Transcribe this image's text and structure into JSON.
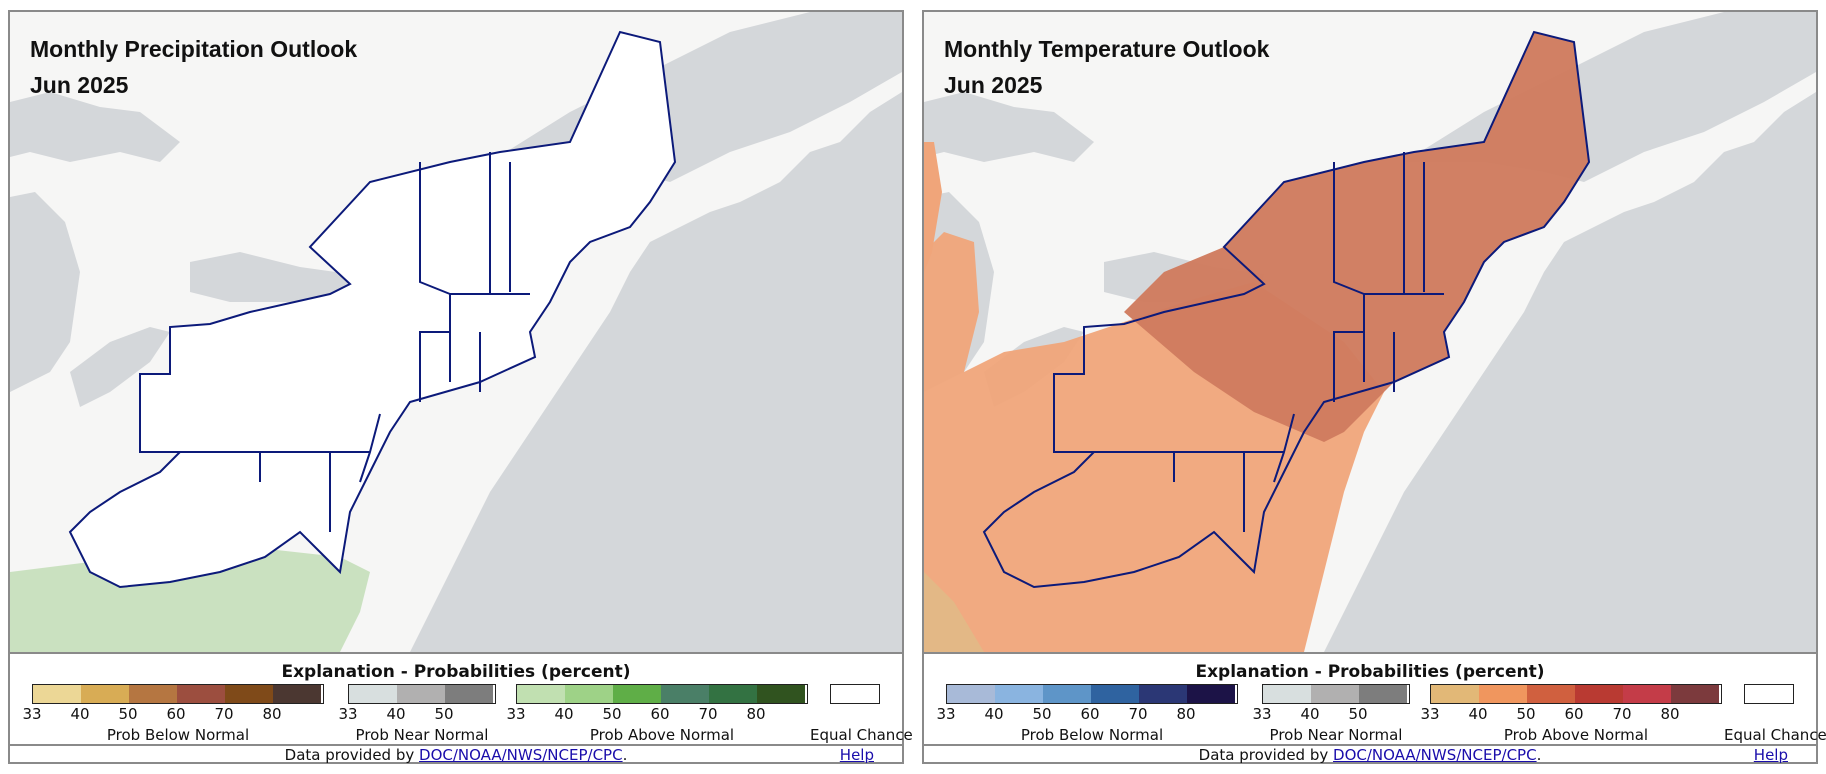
{
  "colors": {
    "water": "#d4d7da",
    "land": "#f6f6f5",
    "state_border": "#0c1a7a",
    "precip_above_fill": "#c5dfba",
    "temp_above_light": "#f0a57a",
    "temp_above_dark": "#d07c5f",
    "temp_near_yellow": "#e3b886"
  },
  "panels": [
    {
      "title": "Monthly Precipitation Outlook",
      "period": "Jun 2025",
      "legend": {
        "title": "Explanation - Probabilities (percent)",
        "groups": [
          {
            "label": "Prob Below Normal",
            "ticks": [
              "33",
              "40",
              "50",
              "60",
              "70",
              "80"
            ],
            "colors": [
              "#ecd796",
              "#d8ac55",
              "#b57641",
              "#9c4e3f",
              "#7f4a19",
              "#4b3731"
            ]
          },
          {
            "label": "Prob Near Normal",
            "ticks": [
              "33",
              "40",
              "50"
            ],
            "colors": [
              "#d8dfdf",
              "#b1b0b0",
              "#7d7d7d"
            ]
          },
          {
            "label": "Prob Above Normal",
            "ticks": [
              "33",
              "40",
              "50",
              "60",
              "70",
              "80"
            ],
            "colors": [
              "#c1e0b1",
              "#9ed287",
              "#5fae47",
              "#4a7f67",
              "#337242",
              "#30531f"
            ]
          }
        ],
        "equal_chance": "Equal Chance"
      },
      "footer": {
        "prefix": "Data provided by",
        "link": "DOC/NOAA/NWS/NCEP/CPC",
        "suffix": ".",
        "help": "Help"
      }
    },
    {
      "title": "Monthly Temperature Outlook",
      "period": "Jun 2025",
      "legend": {
        "title": "Explanation - Probabilities (percent)",
        "groups": [
          {
            "label": "Prob Below Normal",
            "ticks": [
              "33",
              "40",
              "50",
              "60",
              "70",
              "80"
            ],
            "colors": [
              "#a8bad8",
              "#8ab4e0",
              "#5e95c8",
              "#2f63a0",
              "#2b3775",
              "#1c1347"
            ]
          },
          {
            "label": "Prob Near Normal",
            "ticks": [
              "33",
              "40",
              "50"
            ],
            "colors": [
              "#d8dfdf",
              "#b1b0b0",
              "#7d7d7d"
            ]
          },
          {
            "label": "Prob Above Normal",
            "ticks": [
              "33",
              "40",
              "50",
              "60",
              "70",
              "80"
            ],
            "colors": [
              "#e2b877",
              "#f0965e",
              "#d0603f",
              "#b93a32",
              "#c43c48",
              "#7c3a3d"
            ]
          }
        ],
        "equal_chance": "Equal Chance"
      },
      "footer": {
        "prefix": "Data provided by",
        "link": "DOC/NOAA/NWS/NCEP/CPC",
        "suffix": ".",
        "help": "Help"
      }
    }
  ]
}
